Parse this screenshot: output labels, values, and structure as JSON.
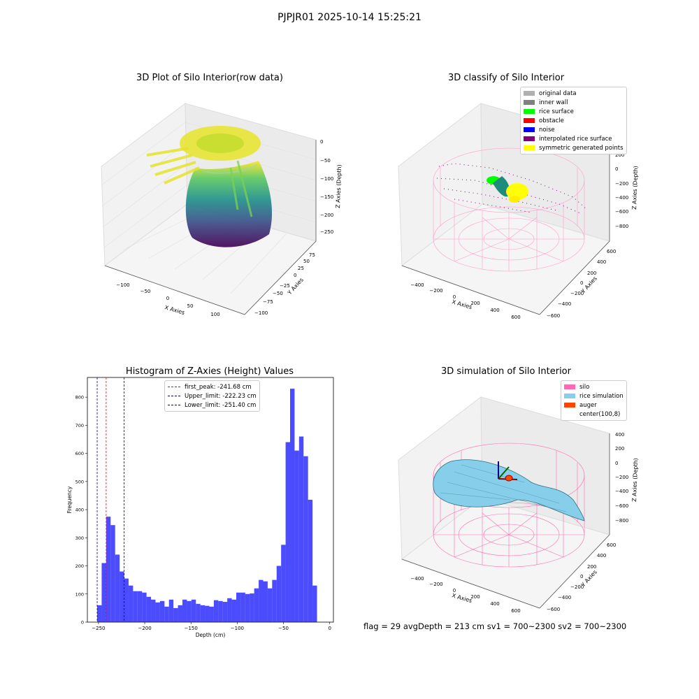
{
  "figure": {
    "suptitle": "PJPJR01 2025-10-14 15:25:21"
  },
  "panel1": {
    "title": "3D Plot of Silo Interior(row data)",
    "xlabel": "X Axies",
    "ylabel": "Y Axies",
    "zlabel": "Z Axies (Depth)",
    "xticks": [
      "−100",
      "−50",
      "0",
      "50",
      "100"
    ],
    "yticks": [
      "75",
      "50",
      "25",
      "0",
      "−25",
      "−50",
      "−75",
      "−100"
    ],
    "zticks": [
      "0",
      "−50",
      "−100",
      "−150",
      "−200",
      "−250"
    ]
  },
  "panel2": {
    "title": "3D classify of Silo Interior",
    "xlabel": "X Axies",
    "ylabel": "Y Axies",
    "zlabel": "Z Axies (Depth)",
    "xticks": [
      "−400",
      "−200",
      "0",
      "200",
      "400",
      "600"
    ],
    "yticks": [
      "600",
      "400",
      "200",
      "0",
      "−200",
      "−400",
      "−600"
    ],
    "zticks": [
      "200",
      "0",
      "−200",
      "−400",
      "−600",
      "−800"
    ],
    "legend": [
      {
        "label": "original data",
        "color": "#b0b0b0"
      },
      {
        "label": "inner wall",
        "color": "#808080"
      },
      {
        "label": "rice surface",
        "color": "#00ff00"
      },
      {
        "label": "obstacle",
        "color": "#ff0000"
      },
      {
        "label": "noise",
        "color": "#0000ff"
      },
      {
        "label": "interpolated rice surface",
        "color": "#800080"
      },
      {
        "label": "symmetric generated points",
        "color": "#ffff00"
      }
    ]
  },
  "panel4": {
    "title": "3D simulation of Silo Interior",
    "xlabel": "X Axies",
    "ylabel": "Y Axies",
    "zlabel": "Z Axies (Depth)",
    "xticks": [
      "−400",
      "−200",
      "0",
      "200",
      "400",
      "600"
    ],
    "yticks": [
      "600",
      "400",
      "200",
      "0",
      "−200",
      "−400",
      "−600"
    ],
    "zticks": [
      "400",
      "200",
      "0",
      "−200",
      "−400",
      "−600",
      "−800"
    ],
    "legend": [
      {
        "label": "silo",
        "color": "#ff69b4"
      },
      {
        "label": "rice simulation",
        "color": "#87ceeb"
      },
      {
        "label": "auger",
        "color": "#ff4500"
      },
      {
        "label": "center(100,8)",
        "color": "#ffffff"
      }
    ]
  },
  "footer": {
    "text": "flag = 29  avgDepth = 213 cm  sv1 = 700~2300  sv2 = 700~2300"
  },
  "chart_data": [
    {
      "type": "histogram",
      "title": "Histogram of Z-Axies (Height) Values",
      "xlabel": "Depth (cm)",
      "ylabel": "Frequency",
      "xlim": [
        -262,
        4
      ],
      "ylim": [
        0,
        870
      ],
      "xticks": [
        -250,
        -200,
        -150,
        -100,
        -50,
        0
      ],
      "xtick_labels": [
        "−250",
        "−200",
        "−150",
        "−100",
        "−50",
        "0"
      ],
      "yticks": [
        0,
        100,
        200,
        300,
        400,
        500,
        600,
        700,
        800
      ],
      "bar_color": "#0000ff",
      "bin_start": -251.4,
      "bin_width": 4.85,
      "values": [
        60,
        210,
        375,
        345,
        240,
        180,
        155,
        130,
        110,
        110,
        105,
        90,
        80,
        70,
        75,
        55,
        80,
        50,
        60,
        80,
        75,
        80,
        65,
        60,
        58,
        55,
        78,
        75,
        72,
        85,
        80,
        105,
        105,
        100,
        102,
        120,
        150,
        145,
        120,
        150,
        200,
        275,
        640,
        830,
        610,
        660,
        590,
        435,
        130
      ],
      "vlines": [
        {
          "label": "first_peak: -241.68 cm",
          "x": -241.68,
          "color": "#ff0000"
        },
        {
          "label": "Upper_limit: -222.23 cm",
          "x": -222.23,
          "color": "#00008b"
        },
        {
          "label": "Lower_limit: -251.40 cm",
          "x": -251.4,
          "color": "#00008b"
        }
      ]
    }
  ]
}
